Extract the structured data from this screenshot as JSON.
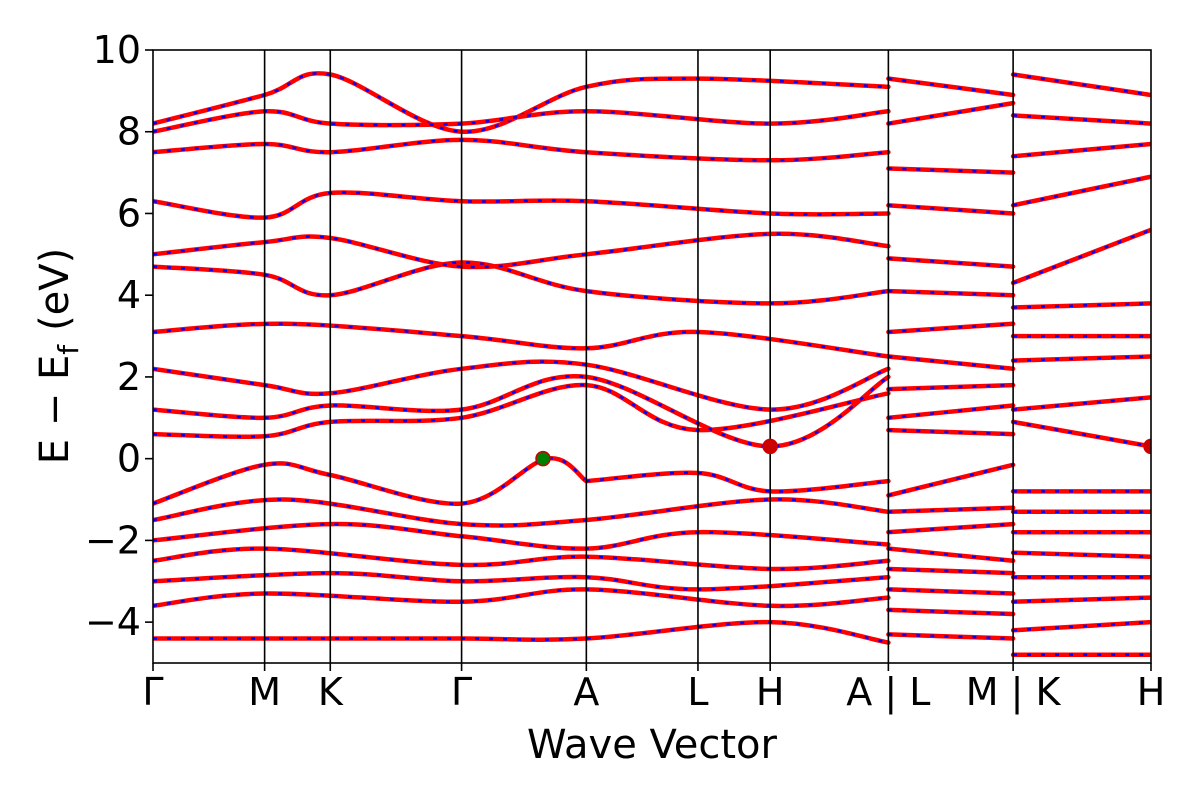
{
  "chart_data": {
    "type": "line",
    "subtype": "electronic band structure",
    "xlabel": "Wave Vector",
    "ylabel": "E − E",
    "ylabel_subscript": "f",
    "ylabel_unit": "(eV)",
    "ylim": [
      -5,
      10
    ],
    "yticks": [
      -4,
      -2,
      0,
      2,
      4,
      6,
      8,
      10
    ],
    "x_labels": [
      "Γ",
      "M",
      "K",
      "Γ",
      "A",
      "L",
      "H",
      "A | L",
      "M | K",
      "H"
    ],
    "segment_breaks": [
      "A | L",
      "M | K"
    ],
    "x_range": [
      0,
      7.6
    ],
    "grid": false,
    "colors": {
      "band": "#ff0000",
      "overlay": "#0000ff",
      "vbm": "#008000",
      "cbm": "#cc0000",
      "vline": "#000000"
    },
    "markers": [
      {
        "name": "vbm",
        "x": 2.97,
        "y": 0.0
      },
      {
        "name": "cbm",
        "x": 4.7,
        "y": 0.3
      },
      {
        "name": "cbm",
        "x": 7.6,
        "y": 0.3
      }
    ],
    "series": [
      {
        "segment": 0,
        "x": [
          0,
          0.85,
          1.35,
          2.35,
          3.0,
          3.3
        ],
        "y": [
          -1.1,
          -0.15,
          -0.4,
          -1.1,
          0.0,
          -0.55
        ]
      },
      {
        "segment": 0,
        "x": [
          3.3,
          4.15,
          4.7,
          5.6
        ],
        "y": [
          -0.55,
          -0.35,
          -0.8,
          -0.55
        ]
      },
      {
        "segment": 0,
        "x": [
          0,
          1.0,
          2.35,
          3.3,
          4.7,
          5.6
        ],
        "y": [
          -1.5,
          -1.0,
          -1.6,
          -1.5,
          -1.0,
          -1.3
        ]
      },
      {
        "segment": 0,
        "x": [
          0,
          1.35,
          2.35,
          3.3,
          4.15,
          5.6
        ],
        "y": [
          -2.0,
          -1.6,
          -1.9,
          -2.2,
          -1.8,
          -2.1
        ]
      },
      {
        "segment": 0,
        "x": [
          0,
          0.85,
          2.35,
          3.3,
          4.7,
          5.6
        ],
        "y": [
          -2.5,
          -2.2,
          -2.6,
          -2.4,
          -2.7,
          -2.5
        ]
      },
      {
        "segment": 0,
        "x": [
          0,
          1.35,
          2.35,
          3.3,
          4.15,
          5.6
        ],
        "y": [
          -3.0,
          -2.8,
          -3.0,
          -2.9,
          -3.2,
          -2.9
        ]
      },
      {
        "segment": 0,
        "x": [
          0,
          0.85,
          2.35,
          3.3,
          4.7,
          5.6
        ],
        "y": [
          -3.6,
          -3.3,
          -3.5,
          -3.2,
          -3.6,
          -3.4
        ]
      },
      {
        "segment": 0,
        "x": [
          0,
          0.85,
          1.35,
          2.35,
          3.3,
          4.7,
          5.6
        ],
        "y": [
          -4.4,
          -4.4,
          -4.4,
          -4.4,
          -4.4,
          -4.0,
          -4.5
        ]
      },
      {
        "segment": 0,
        "x": [
          0,
          0.85,
          1.35,
          2.35,
          3.3,
          4.15,
          5.6
        ],
        "y": [
          0.6,
          0.55,
          0.9,
          1.0,
          1.8,
          0.7,
          1.6
        ]
      },
      {
        "segment": 0,
        "x": [
          0,
          0.85,
          1.35,
          2.35,
          3.3,
          4.7,
          5.6
        ],
        "y": [
          1.2,
          1.0,
          1.3,
          1.2,
          2.0,
          0.3,
          2.0
        ]
      },
      {
        "segment": 0,
        "x": [
          0,
          0.85,
          1.35,
          2.35,
          3.3,
          4.7,
          5.6
        ],
        "y": [
          2.2,
          1.8,
          1.6,
          2.2,
          2.3,
          1.2,
          2.2
        ]
      },
      {
        "segment": 0,
        "x": [
          0,
          1.0,
          2.35,
          3.3,
          4.15,
          5.6
        ],
        "y": [
          3.1,
          3.3,
          3.0,
          2.7,
          3.1,
          2.5
        ]
      },
      {
        "segment": 0,
        "x": [
          0,
          0.85,
          1.35,
          2.35,
          3.3,
          4.7,
          5.6
        ],
        "y": [
          4.7,
          4.5,
          4.0,
          4.8,
          4.1,
          3.8,
          4.1
        ]
      },
      {
        "segment": 0,
        "x": [
          0,
          0.85,
          1.35,
          2.35,
          3.3,
          4.7,
          5.6
        ],
        "y": [
          5.0,
          5.3,
          5.4,
          4.7,
          5.0,
          5.5,
          5.2
        ]
      },
      {
        "segment": 0,
        "x": [
          0,
          0.85,
          1.35,
          2.35,
          3.3,
          4.7,
          5.6
        ],
        "y": [
          6.3,
          5.9,
          6.5,
          6.3,
          6.3,
          6.0,
          6.0
        ]
      },
      {
        "segment": 0,
        "x": [
          0,
          0.85,
          1.35,
          2.35,
          3.3,
          4.7,
          5.6
        ],
        "y": [
          7.5,
          7.7,
          7.5,
          7.8,
          7.5,
          7.3,
          7.5
        ]
      },
      {
        "segment": 0,
        "x": [
          0,
          0.85,
          1.35,
          2.35,
          3.3,
          4.15,
          5.6
        ],
        "y": [
          8.2,
          8.9,
          9.4,
          8.0,
          9.1,
          9.3,
          9.1
        ]
      },
      {
        "segment": 0,
        "x": [
          0,
          0.85,
          1.35,
          2.35,
          3.3,
          4.7,
          5.6
        ],
        "y": [
          8.0,
          8.5,
          8.2,
          8.2,
          8.5,
          8.2,
          8.5
        ]
      },
      {
        "segment": 1,
        "x": [
          5.6,
          6.55
        ],
        "y": [
          -0.9,
          -0.15
        ]
      },
      {
        "segment": 1,
        "x": [
          5.6,
          6.55
        ],
        "y": [
          -1.3,
          -1.2
        ]
      },
      {
        "segment": 1,
        "x": [
          5.6,
          6.55
        ],
        "y": [
          -1.8,
          -1.6
        ]
      },
      {
        "segment": 1,
        "x": [
          5.6,
          6.55
        ],
        "y": [
          -2.2,
          -2.5
        ]
      },
      {
        "segment": 1,
        "x": [
          5.6,
          6.55
        ],
        "y": [
          -2.7,
          -2.8
        ]
      },
      {
        "segment": 1,
        "x": [
          5.6,
          6.55
        ],
        "y": [
          -3.2,
          -3.3
        ]
      },
      {
        "segment": 1,
        "x": [
          5.6,
          6.55
        ],
        "y": [
          -3.7,
          -3.8
        ]
      },
      {
        "segment": 1,
        "x": [
          5.6,
          6.55
        ],
        "y": [
          -4.3,
          -4.4
        ]
      },
      {
        "segment": 1,
        "x": [
          5.6,
          6.55
        ],
        "y": [
          0.7,
          0.6
        ]
      },
      {
        "segment": 1,
        "x": [
          5.6,
          6.55
        ],
        "y": [
          1.0,
          1.3
        ]
      },
      {
        "segment": 1,
        "x": [
          5.6,
          6.55
        ],
        "y": [
          1.7,
          1.8
        ]
      },
      {
        "segment": 1,
        "x": [
          5.6,
          6.55
        ],
        "y": [
          2.5,
          2.2
        ]
      },
      {
        "segment": 1,
        "x": [
          5.6,
          6.55
        ],
        "y": [
          3.1,
          3.3
        ]
      },
      {
        "segment": 1,
        "x": [
          5.6,
          6.55
        ],
        "y": [
          4.1,
          4.0
        ]
      },
      {
        "segment": 1,
        "x": [
          5.6,
          6.55
        ],
        "y": [
          4.9,
          4.7
        ]
      },
      {
        "segment": 1,
        "x": [
          5.6,
          6.55
        ],
        "y": [
          6.2,
          6.0
        ]
      },
      {
        "segment": 1,
        "x": [
          5.6,
          6.55
        ],
        "y": [
          7.1,
          7.0
        ]
      },
      {
        "segment": 1,
        "x": [
          5.6,
          6.55
        ],
        "y": [
          8.2,
          8.7
        ]
      },
      {
        "segment": 1,
        "x": [
          5.6,
          6.55
        ],
        "y": [
          9.3,
          8.9
        ]
      },
      {
        "segment": 2,
        "x": [
          6.55,
          7.6
        ],
        "y": [
          -0.8,
          -0.8
        ]
      },
      {
        "segment": 2,
        "x": [
          6.55,
          7.6
        ],
        "y": [
          -1.3,
          -1.3
        ]
      },
      {
        "segment": 2,
        "x": [
          6.55,
          7.6
        ],
        "y": [
          -1.8,
          -1.8
        ]
      },
      {
        "segment": 2,
        "x": [
          6.55,
          7.6
        ],
        "y": [
          -2.3,
          -2.4
        ]
      },
      {
        "segment": 2,
        "x": [
          6.55,
          7.6
        ],
        "y": [
          -2.9,
          -2.9
        ]
      },
      {
        "segment": 2,
        "x": [
          6.55,
          7.6
        ],
        "y": [
          -3.5,
          -3.4
        ]
      },
      {
        "segment": 2,
        "x": [
          6.55,
          7.6
        ],
        "y": [
          -4.2,
          -4.0
        ]
      },
      {
        "segment": 2,
        "x": [
          6.55,
          7.6
        ],
        "y": [
          -4.8,
          -4.8
        ]
      },
      {
        "segment": 2,
        "x": [
          6.55,
          7.6
        ],
        "y": [
          0.9,
          0.3
        ]
      },
      {
        "segment": 2,
        "x": [
          6.55,
          7.6
        ],
        "y": [
          1.2,
          1.5
        ]
      },
      {
        "segment": 2,
        "x": [
          6.55,
          7.6
        ],
        "y": [
          2.4,
          2.5
        ]
      },
      {
        "segment": 2,
        "x": [
          6.55,
          7.6
        ],
        "y": [
          3.0,
          3.0
        ]
      },
      {
        "segment": 2,
        "x": [
          6.55,
          7.6
        ],
        "y": [
          3.7,
          3.8
        ]
      },
      {
        "segment": 2,
        "x": [
          6.55,
          7.6
        ],
        "y": [
          4.3,
          5.6
        ]
      },
      {
        "segment": 2,
        "x": [
          6.55,
          7.6
        ],
        "y": [
          6.2,
          6.9
        ]
      },
      {
        "segment": 2,
        "x": [
          6.55,
          7.6
        ],
        "y": [
          7.4,
          7.7
        ]
      },
      {
        "segment": 2,
        "x": [
          6.55,
          7.6
        ],
        "y": [
          8.4,
          8.2
        ]
      },
      {
        "segment": 2,
        "x": [
          6.55,
          7.6
        ],
        "y": [
          9.4,
          8.9
        ]
      }
    ]
  }
}
